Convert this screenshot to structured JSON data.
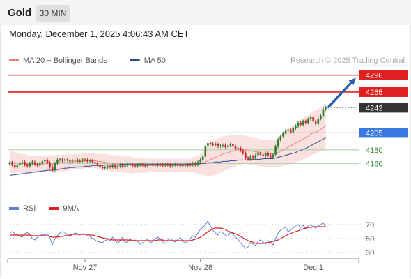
{
  "header": {
    "title": "Gold",
    "timeframe": "30 MIN",
    "datetime": "Monday, December 1, 2025 4:06:43 AM CET"
  },
  "colors": {
    "resistance": "#e02020",
    "support": "#3a78e0",
    "green_level": "#2e8b2e",
    "up_candle": "#2e7d2e",
    "down_candle": "#c62828",
    "ma20": "#f08080",
    "ma50": "#2d4a8c",
    "bollinger_fill": "#fbe0e0",
    "rsi": "#5b7fd6",
    "rsi_ma": "#e02020",
    "current": "#333333",
    "arrow": "#2a5fb0"
  },
  "chart_data": [
    {
      "type": "candlestick",
      "legend": [
        {
          "name": "MA 20 + Bollinger Bands",
          "color": "#f08080"
        },
        {
          "name": "MA 50",
          "color": "#2d4a8c"
        }
      ],
      "credit": "Research © 2025 Trading Central",
      "ylim": [
        4110,
        4305
      ],
      "x_ticks": [
        {
          "label": "Nov 27",
          "index": 30
        },
        {
          "label": "Nov 28",
          "index": 76
        },
        {
          "label": "Dec 1",
          "index": 121
        }
      ],
      "levels": [
        {
          "value": 4290,
          "label": "4290",
          "kind": "resistance"
        },
        {
          "value": 4265,
          "label": "4265",
          "kind": "resistance"
        },
        {
          "value": 4242,
          "label": "4242",
          "kind": "current"
        },
        {
          "value": 4205,
          "label": "4205",
          "kind": "support"
        },
        {
          "value": 4180,
          "label": "4180",
          "kind": "green"
        },
        {
          "value": 4160,
          "label": "4160",
          "kind": "green"
        }
      ],
      "forecast_arrow": {
        "from_index": 126,
        "from_value": 4242,
        "to_index": 138,
        "to_value": 4286
      },
      "close": [
        4161,
        4158,
        4154,
        4157,
        4160,
        4162,
        4158,
        4156,
        4160,
        4162,
        4159,
        4157,
        4160,
        4163,
        4165,
        4161,
        4155,
        4150,
        4160,
        4165,
        4166,
        4164,
        4166,
        4165,
        4163,
        4164,
        4165,
        4163,
        4164,
        4166,
        4165,
        4163,
        4164,
        4162,
        4160,
        4158,
        4155,
        4153,
        4154,
        4156,
        4155,
        4157,
        4154,
        4156,
        4158,
        4155,
        4157,
        4159,
        4158,
        4157,
        4156,
        4158,
        4159,
        4157,
        4156,
        4158,
        4159,
        4158,
        4157,
        4159,
        4158,
        4157,
        4159,
        4158,
        4156,
        4158,
        4159,
        4157,
        4156,
        4158,
        4157,
        4159,
        4158,
        4160,
        4158,
        4162,
        4165,
        4170,
        4185,
        4190,
        4189,
        4187,
        4188,
        4185,
        4186,
        4187,
        4184,
        4186,
        4188,
        4185,
        4182,
        4183,
        4179,
        4175,
        4168,
        4166,
        4170,
        4168,
        4172,
        4176,
        4173,
        4171,
        4175,
        4172,
        4169,
        4173,
        4185,
        4195,
        4200,
        4204,
        4208,
        4210,
        4206,
        4212,
        4215,
        4220,
        4217,
        4222,
        4220,
        4225,
        4228,
        4222,
        4218,
        4226,
        4230,
        4240,
        4242
      ],
      "ma20": [
        4162,
        4162,
        4161,
        4161,
        4160,
        4160,
        4160,
        4159,
        4159,
        4159,
        4159,
        4159,
        4159,
        4159,
        4160,
        4160,
        4160,
        4159,
        4159,
        4160,
        4160,
        4161,
        4161,
        4161,
        4162,
        4162,
        4163,
        4163,
        4163,
        4163,
        4164,
        4164,
        4164,
        4164,
        4164,
        4163,
        4163,
        4162,
        4162,
        4161,
        4161,
        4160,
        4160,
        4160,
        4159,
        4159,
        4158,
        4158,
        4158,
        4157,
        4157,
        4157,
        4157,
        4157,
        4157,
        4157,
        4157,
        4157,
        4157,
        4157,
        4157,
        4157,
        4157,
        4157,
        4157,
        4157,
        4157,
        4157,
        4157,
        4157,
        4157,
        4157,
        4157,
        4158,
        4158,
        4158,
        4159,
        4160,
        4162,
        4164,
        4166,
        4167,
        4169,
        4171,
        4172,
        4174,
        4175,
        4176,
        4177,
        4178,
        4179,
        4180,
        4180,
        4180,
        4180,
        4179,
        4178,
        4178,
        4177,
        4177,
        4176,
        4175,
        4175,
        4175,
        4174,
        4174,
        4175,
        4176,
        4178,
        4180,
        4182,
        4184,
        4186,
        4188,
        4190,
        4192,
        4194,
        4196,
        4198,
        4200,
        4203,
        4205,
        4206,
        4208,
        4210,
        4213,
        4216
      ],
      "ma50": [
        4142,
        4143,
        4143,
        4144,
        4144,
        4145,
        4145,
        4146,
        4146,
        4147,
        4147,
        4148,
        4148,
        4149,
        4149,
        4150,
        4150,
        4150,
        4151,
        4151,
        4152,
        4152,
        4153,
        4153,
        4154,
        4154,
        4154,
        4155,
        4155,
        4155,
        4156,
        4156,
        4156,
        4157,
        4157,
        4157,
        4157,
        4157,
        4158,
        4158,
        4158,
        4158,
        4158,
        4158,
        4158,
        4159,
        4159,
        4159,
        4159,
        4159,
        4159,
        4159,
        4159,
        4159,
        4159,
        4159,
        4159,
        4159,
        4159,
        4159,
        4159,
        4159,
        4159,
        4159,
        4159,
        4159,
        4159,
        4159,
        4159,
        4159,
        4159,
        4159,
        4159,
        4159,
        4159,
        4159,
        4160,
        4160,
        4160,
        4161,
        4161,
        4161,
        4162,
        4162,
        4162,
        4163,
        4163,
        4163,
        4164,
        4164,
        4164,
        4165,
        4165,
        4165,
        4165,
        4165,
        4166,
        4166,
        4166,
        4166,
        4166,
        4167,
        4167,
        4167,
        4167,
        4167,
        4168,
        4169,
        4170,
        4171,
        4172,
        4173,
        4174,
        4175,
        4176,
        4178,
        4179,
        4181,
        4182,
        4184,
        4186,
        4188,
        4190,
        4192,
        4194,
        4196,
        4198
      ],
      "band_width": [
        16,
        16,
        15,
        15,
        14,
        14,
        14,
        13,
        13,
        13,
        13,
        12,
        12,
        12,
        12,
        12,
        12,
        13,
        13,
        13,
        12,
        12,
        12,
        12,
        12,
        11,
        11,
        11,
        11,
        11,
        11,
        11,
        11,
        11,
        11,
        11,
        11,
        12,
        12,
        12,
        12,
        12,
        12,
        12,
        12,
        12,
        12,
        12,
        12,
        12,
        11,
        11,
        11,
        11,
        11,
        10,
        10,
        10,
        10,
        10,
        10,
        10,
        10,
        10,
        10,
        10,
        10,
        10,
        10,
        10,
        10,
        10,
        10,
        11,
        12,
        13,
        15,
        17,
        20,
        22,
        24,
        25,
        26,
        26,
        26,
        26,
        25,
        25,
        24,
        24,
        23,
        22,
        22,
        21,
        21,
        20,
        20,
        20,
        20,
        20,
        20,
        20,
        20,
        20,
        20,
        20,
        21,
        22,
        23,
        24,
        25,
        26,
        27,
        28,
        28,
        29,
        30,
        30,
        31,
        31,
        32,
        32,
        32,
        32,
        32,
        33,
        34
      ]
    },
    {
      "type": "line",
      "legend": [
        {
          "name": "RSI",
          "color": "#5b7fd6"
        },
        {
          "name": "9MA",
          "color": "#e02020"
        }
      ],
      "ylim": [
        20,
        80
      ],
      "y_ticks": [
        "70",
        "50",
        "30"
      ],
      "rsi": [
        58,
        60,
        57,
        55,
        53,
        52,
        57,
        59,
        55,
        50,
        48,
        52,
        54,
        56,
        55,
        57,
        51,
        42,
        49,
        54,
        58,
        60,
        59,
        55,
        53,
        56,
        58,
        57,
        55,
        57,
        56,
        54,
        53,
        50,
        48,
        46,
        45,
        44,
        47,
        49,
        47,
        52,
        48,
        43,
        47,
        52,
        44,
        45,
        49,
        47,
        48,
        46,
        42,
        44,
        47,
        49,
        44,
        46,
        50,
        52,
        49,
        45,
        43,
        48,
        50,
        47,
        45,
        49,
        51,
        46,
        44,
        46,
        50,
        54,
        52,
        58,
        63,
        66,
        70,
        75,
        68,
        62,
        58,
        55,
        60,
        58,
        55,
        53,
        60,
        56,
        52,
        49,
        44,
        40,
        36,
        38,
        45,
        42,
        40,
        46,
        48,
        45,
        42,
        47,
        44,
        41,
        50,
        58,
        62,
        64,
        66,
        60,
        62,
        65,
        68,
        70,
        66,
        69,
        64,
        68,
        70,
        67,
        65,
        68,
        70,
        73,
        66
      ],
      "ma9": [
        55,
        55,
        55,
        55,
        55,
        55,
        55,
        55,
        55,
        54,
        54,
        54,
        54,
        54,
        54,
        54,
        53,
        52,
        52,
        52,
        53,
        53,
        54,
        54,
        55,
        56,
        56,
        56,
        56,
        56,
        56,
        56,
        55,
        55,
        54,
        53,
        52,
        51,
        50,
        50,
        49,
        48,
        48,
        48,
        48,
        48,
        48,
        48,
        48,
        47,
        47,
        47,
        47,
        47,
        47,
        47,
        47,
        47,
        47,
        48,
        48,
        48,
        47,
        47,
        47,
        47,
        47,
        47,
        47,
        47,
        47,
        47,
        47,
        48,
        49,
        50,
        52,
        54,
        57,
        60,
        62,
        64,
        65,
        65,
        65,
        64,
        63,
        61,
        59,
        58,
        57,
        55,
        53,
        51,
        49,
        47,
        46,
        45,
        43,
        43,
        43,
        43,
        44,
        44,
        45,
        46,
        47,
        48,
        50,
        52,
        54,
        56,
        57,
        59,
        60,
        61,
        63,
        64,
        65,
        66,
        66,
        67,
        67,
        67,
        67,
        67,
        67
      ]
    }
  ]
}
